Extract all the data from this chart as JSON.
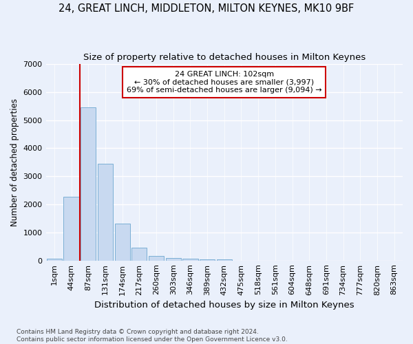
{
  "title1": "24, GREAT LINCH, MIDDLETON, MILTON KEYNES, MK10 9BF",
  "title2": "Size of property relative to detached houses in Milton Keynes",
  "xlabel": "Distribution of detached houses by size in Milton Keynes",
  "ylabel": "Number of detached properties",
  "footnote": "Contains HM Land Registry data © Crown copyright and database right 2024.\nContains public sector information licensed under the Open Government Licence v3.0.",
  "categories": [
    "1sqm",
    "44sqm",
    "87sqm",
    "131sqm",
    "174sqm",
    "217sqm",
    "260sqm",
    "303sqm",
    "346sqm",
    "389sqm",
    "432sqm",
    "475sqm",
    "518sqm",
    "561sqm",
    "604sqm",
    "648sqm",
    "691sqm",
    "734sqm",
    "777sqm",
    "820sqm",
    "863sqm"
  ],
  "bar_values": [
    75,
    2270,
    5460,
    3440,
    1310,
    460,
    160,
    100,
    70,
    50,
    50,
    0,
    0,
    0,
    0,
    0,
    0,
    0,
    0,
    0,
    0
  ],
  "bar_color": "#c8d9f0",
  "bar_edge_color": "#7bafd4",
  "vline_color": "#cc0000",
  "vline_pos": 2.5,
  "annotation_text": "24 GREAT LINCH: 102sqm\n← 30% of detached houses are smaller (3,997)\n69% of semi-detached houses are larger (9,094) →",
  "annotation_box_color": "#ffffff",
  "annotation_box_edge": "#cc0000",
  "ylim": [
    0,
    7000
  ],
  "yticks": [
    0,
    1000,
    2000,
    3000,
    4000,
    5000,
    6000,
    7000
  ],
  "bg_color": "#eaf0fb",
  "grid_color": "#ffffff",
  "title1_fontsize": 10.5,
  "title2_fontsize": 9.5,
  "xlabel_fontsize": 9.5,
  "ylabel_fontsize": 8.5,
  "tick_fontsize": 8.0,
  "annotation_fontsize": 8.0,
  "footnote_fontsize": 6.5
}
